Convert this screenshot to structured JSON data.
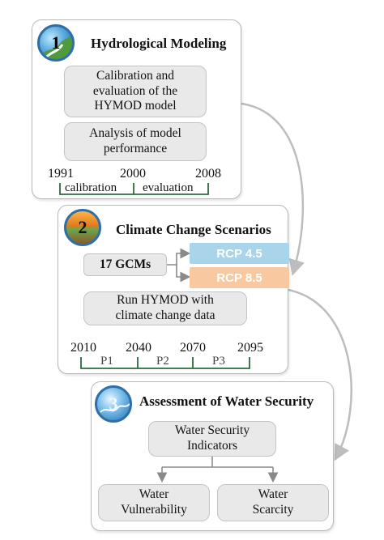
{
  "section1": {
    "number": "1",
    "title": "Hydrological Modeling",
    "box_calibration": "Calibration and evaluation of the HYMOD model",
    "box_analysis": "Analysis of model performance",
    "years": [
      "1991",
      "2000",
      "2008"
    ],
    "periods": [
      "calibration",
      "evaluation"
    ]
  },
  "section2": {
    "number": "2",
    "title": "Climate Change Scenarios",
    "gcms": "17 GCMs",
    "rcp45": "RCP 4.5",
    "rcp85": "RCP 8.5",
    "run_box": "Run HYMOD with climate change data",
    "years": [
      "2010",
      "2040",
      "2070",
      "2095"
    ],
    "periods": [
      "P1",
      "P2",
      "P3"
    ]
  },
  "section3": {
    "number": "3",
    "title": "Assessment of Water Security",
    "indicators": "Water Security Indicators",
    "vulnerability": "Water Vulnerability",
    "scarcity": "Water Scarcity"
  },
  "colors": {
    "rcp45": "#a9d4ea",
    "rcp85": "#f8c9a0",
    "timeline": "#2d6a3e",
    "connector": "#bdbdbd"
  }
}
